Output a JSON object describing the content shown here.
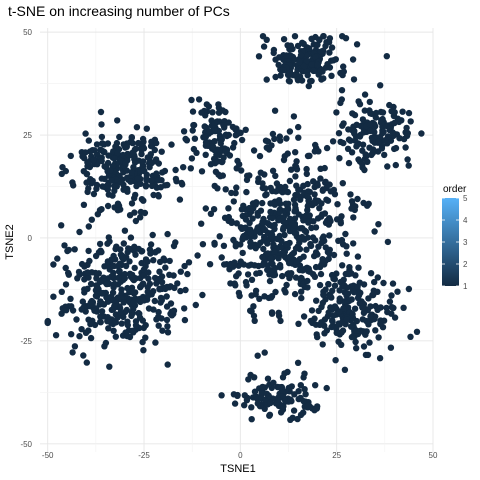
{
  "chart_data": {
    "type": "scatter",
    "title": "t-SNE on increasing number of PCs",
    "xlabel": "TSNE1",
    "ylabel": "TSNE2",
    "xlim": [
      -52,
      50
    ],
    "ylim": [
      -52,
      51
    ],
    "xticks": [
      -50,
      -25,
      0,
      25,
      50
    ],
    "xtick_labels": [
      "-50",
      "-25",
      "0",
      "25",
      "50"
    ],
    "yticks": [
      -50,
      -25,
      0,
      25,
      50
    ],
    "ytick_labels": [
      "-50",
      "-25",
      "0",
      "25",
      "50"
    ],
    "grid": true,
    "point_color": "#132b43",
    "legend": {
      "title": "order",
      "type": "colorbar",
      "low_color": "#132b43",
      "high_color": "#56b1f7",
      "range": [
        1,
        5
      ],
      "ticks": [
        1,
        2,
        3,
        4,
        5
      ],
      "tick_labels": [
        "1",
        "2",
        "3",
        "4",
        "5"
      ],
      "placement": "right"
    },
    "clusters": [
      {
        "name": "top-right-upper",
        "center": [
          17,
          43
        ],
        "spread": [
          9,
          5
        ],
        "points": 180
      },
      {
        "name": "top-right-lower",
        "center": [
          35,
          26
        ],
        "spread": [
          8,
          6
        ],
        "points": 150
      },
      {
        "name": "top-center-left",
        "center": [
          -6,
          24
        ],
        "spread": [
          6,
          7
        ],
        "points": 110
      },
      {
        "name": "left-upper",
        "center": [
          -30,
          17
        ],
        "spread": [
          11,
          8
        ],
        "points": 260
      },
      {
        "name": "left-lower",
        "center": [
          -31,
          -13
        ],
        "spread": [
          13,
          11
        ],
        "points": 380
      },
      {
        "name": "center-main",
        "center": [
          12,
          2
        ],
        "spread": [
          15,
          17
        ],
        "points": 520
      },
      {
        "name": "right-lower",
        "center": [
          30,
          -18
        ],
        "spread": [
          9,
          8
        ],
        "points": 180
      },
      {
        "name": "bottom-center",
        "center": [
          10,
          -39
        ],
        "spread": [
          9,
          4
        ],
        "points": 110
      }
    ]
  }
}
